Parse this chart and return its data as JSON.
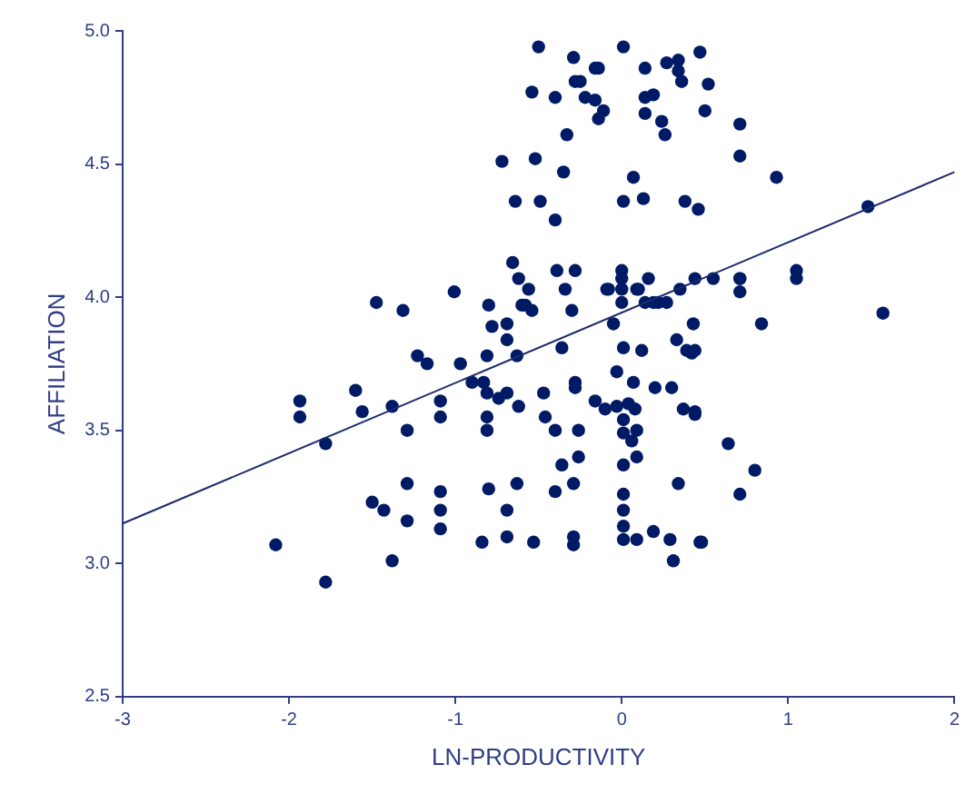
{
  "chart_data": {
    "type": "scatter",
    "xlabel": "LN-PRODUCTIVITY",
    "ylabel": "AFFILIATION",
    "xlim": [
      -3,
      2
    ],
    "xticks": [
      -3,
      -2,
      -1,
      0,
      1,
      2
    ],
    "ylim": [
      2.5,
      5.0
    ],
    "yticks": [
      {
        "value": 2.5,
        "label": "2.5"
      },
      {
        "value": 3.0,
        "label": "3.0"
      },
      {
        "value": 3.5,
        "label": "3.5"
      },
      {
        "value": 4.0,
        "label": "4.0"
      },
      {
        "value": 4.5,
        "label": "4.5"
      },
      {
        "value": 5.0,
        "label": "5.0"
      }
    ],
    "grid": false,
    "legend": false,
    "marker": "circle",
    "series": [
      {
        "type": "scatter",
        "color": "#001a66",
        "x": [
          -1.475,
          -1.315,
          -1.007,
          -0.8,
          -0.656,
          -0.62,
          -0.6,
          -0.78,
          -0.69,
          -0.69,
          -1.228,
          -1.17,
          -0.97,
          -0.81,
          -0.63,
          -0.9,
          -0.83,
          -0.81,
          -0.74,
          -0.69,
          -0.62,
          -1.6,
          -1.935,
          -1.935,
          -1.56,
          -1.38,
          -1.09,
          -1.09,
          -0.81,
          -0.81,
          -1.29,
          -1.78,
          -1.29,
          -1.09,
          -0.8,
          -0.63,
          -1.5,
          -1.43,
          -1.29,
          -1.09,
          -1.09,
          -0.69,
          -0.84,
          -0.69,
          -2.08,
          -1.38,
          -1.78,
          -0.5,
          0.01,
          -0.29,
          -0.16,
          -0.14,
          0.14,
          0.27,
          0.34,
          0.34,
          0.36,
          0.47,
          -0.54,
          -0.4,
          -0.28,
          -0.25,
          -0.22,
          -0.16,
          -0.11,
          -0.14,
          0.14,
          0.19,
          0.14,
          0.24,
          0.26,
          0.5,
          -0.33,
          -0.72,
          -0.52,
          -0.35,
          0.07,
          -0.64,
          -0.49,
          -0.4,
          0.01,
          0.13,
          0.38,
          0.46,
          -0.39,
          -0.28,
          0.0,
          0.0,
          0.0,
          0.16,
          0.44,
          -0.56,
          -0.34,
          -0.08,
          0.1,
          0.35,
          -0.58,
          -0.3,
          0.0,
          0.14,
          0.22,
          -0.54,
          0.43,
          -0.05,
          0.55,
          0.71,
          -0.09,
          0.09,
          0.19,
          0.27,
          -0.36,
          0.01,
          0.12,
          0.33,
          0.39,
          0.42,
          -0.03,
          0.07,
          -0.28,
          -0.28,
          -0.47,
          -0.16,
          -0.1,
          -0.03,
          0.04,
          0.08,
          0.01,
          0.2,
          0.3,
          0.37,
          0.44,
          -0.46,
          -0.4,
          -0.26,
          0.01,
          0.09,
          0.06,
          0.09,
          0.01,
          0.64,
          -0.26,
          -0.36,
          -0.29,
          -0.4,
          0.34,
          0.01,
          0.01,
          0.71,
          0.01,
          0.01,
          0.09,
          0.19,
          0.29,
          -0.53,
          -0.29,
          -0.29,
          0.47,
          0.31,
          0.52,
          0.71,
          0.71,
          0.93,
          1.48,
          0.71,
          0.71,
          1.05,
          1.05,
          0.84,
          1.57,
          0.8,
          0.48,
          0.44,
          0.44
        ],
        "values": [
          3.98,
          3.95,
          4.02,
          3.97,
          4.13,
          4.07,
          3.97,
          3.89,
          3.9,
          3.84,
          3.78,
          3.75,
          3.75,
          3.78,
          3.78,
          3.68,
          3.68,
          3.64,
          3.62,
          3.64,
          3.59,
          3.65,
          3.61,
          3.55,
          3.57,
          3.59,
          3.61,
          3.55,
          3.55,
          3.5,
          3.5,
          3.45,
          3.3,
          3.27,
          3.28,
          3.3,
          3.23,
          3.2,
          3.16,
          3.2,
          3.13,
          3.2,
          3.08,
          3.1,
          3.07,
          3.01,
          2.93,
          4.94,
          4.94,
          4.9,
          4.86,
          4.86,
          4.86,
          4.88,
          4.89,
          4.85,
          4.81,
          4.92,
          4.77,
          4.75,
          4.81,
          4.81,
          4.75,
          4.74,
          4.7,
          4.67,
          4.75,
          4.76,
          4.69,
          4.66,
          4.61,
          4.7,
          4.61,
          4.51,
          4.52,
          4.47,
          4.45,
          4.36,
          4.36,
          4.29,
          4.36,
          4.37,
          4.36,
          4.33,
          4.1,
          4.1,
          4.1,
          4.07,
          4.03,
          4.07,
          4.07,
          4.03,
          4.03,
          4.03,
          4.03,
          4.03,
          3.97,
          3.95,
          3.98,
          3.98,
          3.98,
          3.95,
          3.9,
          3.9,
          4.07,
          4.07,
          4.03,
          4.03,
          3.98,
          3.98,
          3.81,
          3.81,
          3.8,
          3.84,
          3.8,
          3.79,
          3.72,
          3.68,
          3.68,
          3.66,
          3.64,
          3.61,
          3.58,
          3.59,
          3.6,
          3.58,
          3.54,
          3.66,
          3.66,
          3.58,
          3.57,
          3.55,
          3.5,
          3.5,
          3.49,
          3.5,
          3.46,
          3.4,
          3.37,
          3.45,
          3.4,
          3.37,
          3.3,
          3.27,
          3.3,
          3.26,
          3.2,
          3.26,
          3.14,
          3.09,
          3.09,
          3.12,
          3.09,
          3.08,
          3.1,
          3.07,
          3.08,
          3.01,
          4.8,
          4.65,
          4.53,
          4.45,
          4.34,
          4.07,
          4.02,
          4.1,
          4.07,
          3.9,
          3.94,
          3.35,
          3.08,
          3.56,
          3.8
        ]
      },
      {
        "type": "line",
        "marker": "none",
        "color": "#1a2a6c",
        "x": [
          -3,
          2
        ],
        "values": [
          3.15,
          4.47
        ]
      }
    ]
  }
}
